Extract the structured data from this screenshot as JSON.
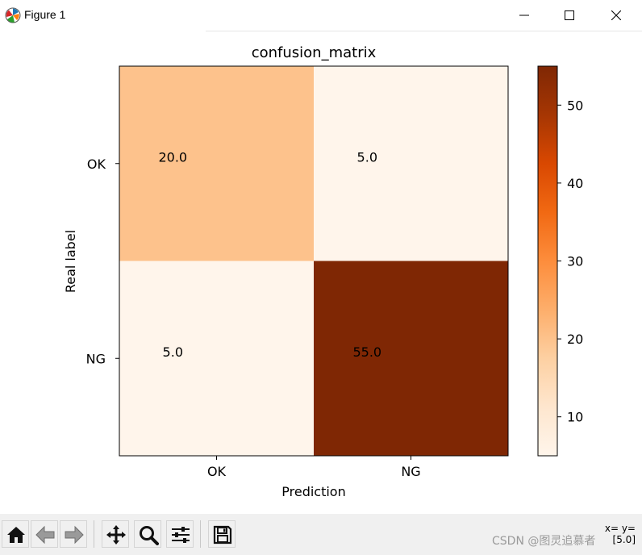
{
  "window": {
    "title": "Figure 1",
    "buttons": [
      "minimize",
      "maximize",
      "close"
    ]
  },
  "chart_data": {
    "type": "heatmap",
    "title": "confusion_matrix",
    "xlabel": "Prediction",
    "ylabel": "Real label",
    "x_categories": [
      "OK",
      "NG"
    ],
    "y_categories": [
      "OK",
      "NG"
    ],
    "values": [
      [
        20.0,
        5.0
      ],
      [
        5.0,
        55.0
      ]
    ],
    "cell_labels": [
      [
        "20.0",
        "5.0"
      ],
      [
        "5.0",
        "55.0"
      ]
    ],
    "colormap": "Oranges",
    "colorbar": {
      "range": [
        5,
        55
      ],
      "ticks": [
        10,
        20,
        30,
        40,
        50
      ]
    }
  },
  "toolbar": {
    "buttons": [
      "home-icon",
      "back-icon",
      "forward-icon",
      "pan-icon",
      "zoom-icon",
      "configure-subplots-icon",
      "save-icon"
    ],
    "coords_text": "x= y=",
    "coords_value": "[5.0]"
  },
  "watermark": "CSDN @图灵追慕者"
}
